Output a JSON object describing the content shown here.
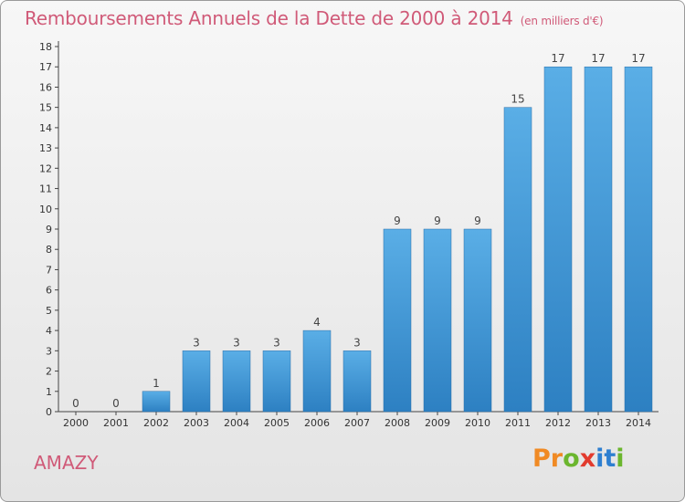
{
  "title": "Remboursements Annuels de la Dette de 2000 à 2014",
  "unit": "(en milliers d'€)",
  "town": "AMAZY",
  "logo": {
    "letters": [
      "P",
      "r",
      "o",
      "x",
      "i",
      "t",
      "i"
    ],
    "colors": [
      "#f08a24",
      "#f08a24",
      "#6bb62e",
      "#e23b2e",
      "#2e7fd0",
      "#2e7fd0",
      "#6bb62e"
    ]
  },
  "colors": {
    "bar_light": "#5aaee6",
    "bar_dark": "#2d80c2",
    "title": "#d05a78"
  },
  "chart_data": {
    "type": "bar",
    "title": "Remboursements Annuels de la Dette de 2000 à 2014",
    "categories": [
      "2000",
      "2001",
      "2002",
      "2003",
      "2004",
      "2005",
      "2006",
      "2007",
      "2008",
      "2009",
      "2010",
      "2011",
      "2012",
      "2013",
      "2014"
    ],
    "values": [
      0,
      0,
      1,
      3,
      3,
      3,
      4,
      3,
      9,
      9,
      9,
      15,
      17,
      17,
      17
    ],
    "data_labels": [
      "0",
      "0",
      "1",
      "3",
      "3",
      "3",
      "4",
      "3",
      "9",
      "9",
      "9",
      "15",
      "17",
      "17",
      "17"
    ],
    "yticks": [
      "0",
      "1",
      "2",
      "3",
      "4",
      "5",
      "6",
      "7",
      "8",
      "9",
      "10",
      "11",
      "12",
      "13",
      "14",
      "15",
      "16",
      "17",
      "18"
    ],
    "ylim": [
      0,
      18
    ],
    "grid": false,
    "legend": "none"
  }
}
